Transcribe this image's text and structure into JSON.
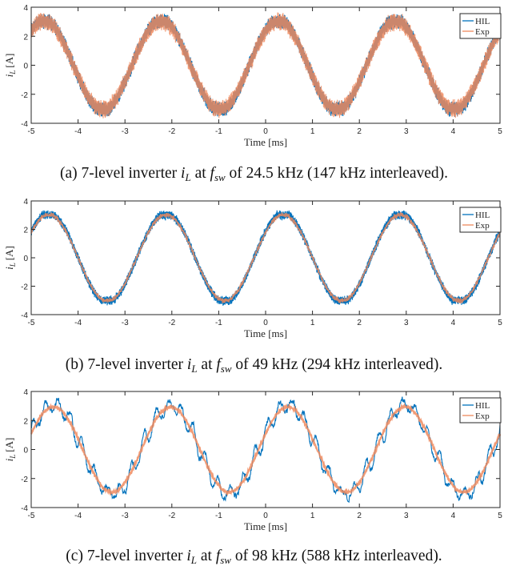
{
  "colors": {
    "hil": "#0072BD",
    "exp": "#EE8A5E",
    "axes": "#262626"
  },
  "chart_data": [
    {
      "type": "line",
      "panel": "a",
      "xlabel": "Time [ms]",
      "ylabel": "i_L [A]",
      "ylabel_main": "i",
      "ylabel_sub": "L",
      "ylabel_unit": "[A]",
      "xlim": [
        -5,
        5
      ],
      "ylim": [
        -4,
        4
      ],
      "xticks": [
        "-5",
        "-4",
        "-3",
        "-2",
        "-1",
        "0",
        "1",
        "2",
        "3",
        "4",
        "5"
      ],
      "yticks": [
        "-4",
        "-2",
        "0",
        "2",
        "4"
      ],
      "legend": [
        "HIL",
        "Exp"
      ],
      "legend_position": "top-right",
      "grid": false,
      "series": [
        {
          "name": "HIL",
          "amplitude": 3.0,
          "frequency_hz": 400,
          "phase_ms": -0.35,
          "ripple_A": 0.5,
          "ripple_khz": 147
        },
        {
          "name": "Exp",
          "amplitude": 2.9,
          "frequency_hz": 400,
          "phase_ms": -0.35,
          "ripple_A": 0.6,
          "ripple_khz": 147
        }
      ],
      "caption": {
        "prefix": "(a) 7-level inverter ",
        "var": "i",
        "var_sub": "L",
        "mid": " at ",
        "f": "f",
        "f_sub": "sw",
        "suffix": " of 24.5 kHz (147 kHz interleaved)."
      }
    },
    {
      "type": "line",
      "panel": "b",
      "xlabel": "Time [ms]",
      "ylabel": "i_L [A]",
      "ylabel_main": "i",
      "ylabel_sub": "L",
      "ylabel_unit": "[A]",
      "xlim": [
        -5,
        5
      ],
      "ylim": [
        -4,
        4
      ],
      "xticks": [
        "-5",
        "-4",
        "-3",
        "-2",
        "-1",
        "0",
        "1",
        "2",
        "3",
        "4",
        "5"
      ],
      "yticks": [
        "-4",
        "-2",
        "0",
        "2",
        "4"
      ],
      "legend": [
        "HIL",
        "Exp"
      ],
      "legend_position": "top-right",
      "grid": false,
      "series": [
        {
          "name": "HIL",
          "amplitude": 3.0,
          "frequency_hz": 400,
          "phase_ms": -0.25,
          "ripple_A": 0.3,
          "ripple_khz": 294
        },
        {
          "name": "Exp",
          "amplitude": 2.9,
          "frequency_hz": 400,
          "phase_ms": -0.25,
          "ripple_A": 0.15,
          "ripple_khz": 294
        }
      ],
      "caption": {
        "prefix": "(b) 7-level inverter ",
        "var": "i",
        "var_sub": "L",
        "mid": " at ",
        "f": "f",
        "f_sub": "sw",
        "suffix": " of 49 kHz (294 kHz interleaved)."
      }
    },
    {
      "type": "line",
      "panel": "c",
      "xlabel": "Time [ms]",
      "ylabel": "i_L [A]",
      "ylabel_main": "i",
      "ylabel_sub": "L",
      "ylabel_unit": "[A]",
      "xlim": [
        -5,
        5
      ],
      "ylim": [
        -4,
        4
      ],
      "xticks": [
        "-5",
        "-4",
        "-3",
        "-2",
        "-1",
        "0",
        "1",
        "2",
        "3",
        "4",
        "5"
      ],
      "yticks": [
        "-4",
        "-2",
        "0",
        "2",
        "4"
      ],
      "legend": [
        "HIL",
        "Exp"
      ],
      "legend_position": "top-right",
      "grid": false,
      "series": [
        {
          "name": "HIL",
          "amplitude": 2.9,
          "frequency_hz": 400,
          "phase_ms": -0.15,
          "ripple_A": 0.55,
          "ripple_khz": 4
        },
        {
          "name": "Exp",
          "amplitude": 2.8,
          "frequency_hz": 400,
          "phase_ms": -0.15,
          "ripple_A": 0.05,
          "ripple_khz": 588
        }
      ],
      "caption": {
        "prefix": "(c) 7-level inverter ",
        "var": "i",
        "var_sub": "L",
        "mid": " at ",
        "f": "f",
        "f_sub": "sw",
        "suffix": " of 98 kHz (588 kHz interleaved)."
      }
    }
  ]
}
